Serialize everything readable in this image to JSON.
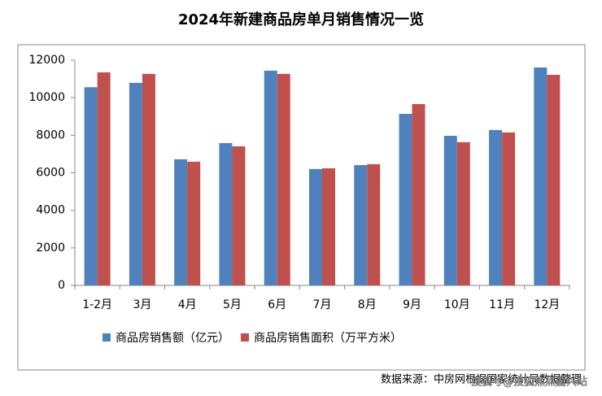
{
  "chart_data": {
    "type": "bar",
    "title": "2024年新建商品房单月销售情况一览",
    "categories": [
      "1-2月",
      "3月",
      "4月",
      "5月",
      "6月",
      "7月",
      "8月",
      "9月",
      "10月",
      "11月",
      "12月"
    ],
    "series": [
      {
        "name": "商品房销售额（亿元）",
        "color": "#4f81bd",
        "values": [
          10560,
          10790,
          6720,
          7580,
          11440,
          6200,
          6410,
          9140,
          7970,
          8280,
          11610
        ]
      },
      {
        "name": "商品房销售面积（万平方米）",
        "color": "#c0504d",
        "values": [
          11350,
          11270,
          6590,
          7410,
          11270,
          6240,
          6460,
          9660,
          7630,
          8150,
          11220
        ]
      }
    ],
    "ylim": [
      0,
      12000
    ],
    "yticks": [
      0,
      2000,
      4000,
      6000,
      8000,
      10000,
      12000
    ],
    "source": "数据来源：中房网根据国家统计局数据整理",
    "watermark": "搜狐号@搜狐焦点嘉兴站"
  }
}
